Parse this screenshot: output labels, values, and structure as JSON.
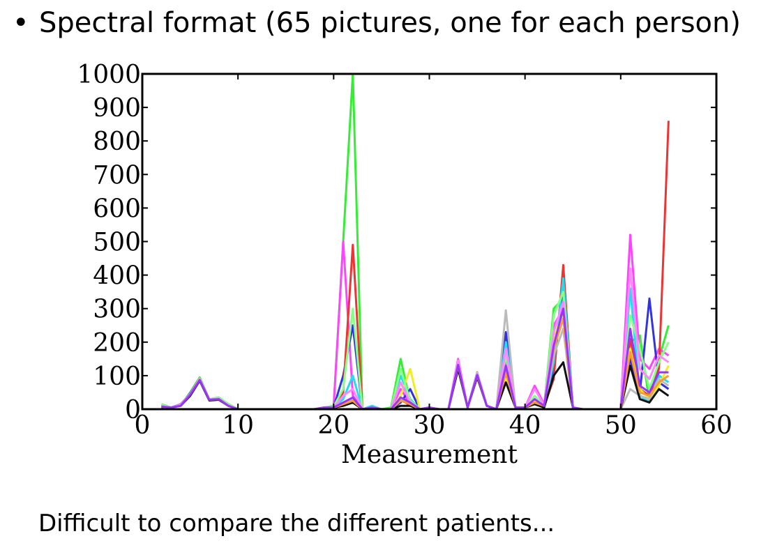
{
  "slide": {
    "bullet_symbol": "•",
    "bullet_text": "Spectral format (65 pictures, one for each person)",
    "caption": "Difficult to compare the different patients..."
  },
  "chart_data": {
    "type": "line",
    "title": "",
    "xlabel": "Measurement",
    "ylabel": "",
    "xlim": [
      0,
      60
    ],
    "ylim": [
      0,
      1000
    ],
    "xticks": [
      0,
      10,
      20,
      30,
      40,
      50,
      60
    ],
    "yticks": [
      0,
      100,
      200,
      300,
      400,
      500,
      600,
      700,
      800,
      900,
      1000
    ],
    "grid": false,
    "legend": "none",
    "x": [
      2,
      3,
      4,
      5,
      6,
      7,
      8,
      9,
      10,
      11,
      12,
      13,
      14,
      15,
      16,
      17,
      18,
      19,
      20,
      21,
      22,
      23,
      24,
      25,
      26,
      27,
      28,
      29,
      30,
      31,
      32,
      33,
      34,
      35,
      36,
      37,
      38,
      39,
      40,
      41,
      42,
      43,
      44,
      45,
      46,
      47,
      48,
      49,
      50,
      51,
      52,
      53,
      54,
      55
    ],
    "series": [
      {
        "color": "#33ee33",
        "values": [
          15,
          5,
          10,
          50,
          95,
          30,
          35,
          15,
          0,
          0,
          0,
          0,
          0,
          0,
          0,
          0,
          0,
          5,
          10,
          500,
          1000,
          0,
          5,
          0,
          5,
          150,
          20,
          0,
          5,
          0,
          0,
          140,
          5,
          110,
          10,
          0,
          100,
          5,
          5,
          30,
          10,
          300,
          330,
          5,
          0,
          0,
          0,
          0,
          0,
          200,
          220,
          20,
          150,
          250
        ]
      },
      {
        "color": "#ff44ff",
        "values": [
          10,
          5,
          15,
          45,
          90,
          28,
          32,
          10,
          0,
          0,
          0,
          0,
          0,
          0,
          0,
          0,
          0,
          5,
          5,
          500,
          40,
          0,
          5,
          0,
          0,
          60,
          15,
          0,
          5,
          0,
          0,
          150,
          5,
          110,
          10,
          0,
          140,
          5,
          5,
          70,
          15,
          250,
          300,
          5,
          0,
          0,
          0,
          0,
          0,
          520,
          150,
          120,
          180,
          160
        ]
      },
      {
        "color": "#3333dd",
        "values": [
          8,
          5,
          12,
          48,
          92,
          30,
          30,
          12,
          0,
          0,
          0,
          0,
          0,
          0,
          0,
          0,
          0,
          5,
          5,
          100,
          250,
          0,
          5,
          0,
          0,
          20,
          60,
          0,
          5,
          0,
          0,
          130,
          5,
          100,
          10,
          0,
          230,
          5,
          5,
          20,
          5,
          120,
          380,
          5,
          0,
          0,
          0,
          0,
          0,
          150,
          50,
          330,
          80,
          60
        ]
      },
      {
        "color": "#ee3333",
        "values": [
          5,
          5,
          10,
          45,
          88,
          28,
          30,
          10,
          0,
          0,
          0,
          0,
          0,
          0,
          0,
          0,
          0,
          5,
          5,
          50,
          490,
          0,
          5,
          0,
          0,
          30,
          10,
          0,
          5,
          0,
          0,
          130,
          5,
          100,
          10,
          0,
          120,
          5,
          5,
          20,
          10,
          90,
          430,
          5,
          0,
          0,
          0,
          0,
          0,
          210,
          60,
          40,
          120,
          860
        ]
      },
      {
        "color": "#22ddee",
        "values": [
          12,
          5,
          12,
          46,
          90,
          30,
          33,
          12,
          0,
          0,
          0,
          0,
          0,
          0,
          0,
          0,
          0,
          5,
          5,
          30,
          100,
          0,
          10,
          0,
          0,
          100,
          30,
          0,
          5,
          0,
          0,
          135,
          5,
          105,
          10,
          0,
          200,
          5,
          5,
          30,
          10,
          140,
          390,
          5,
          0,
          0,
          0,
          0,
          0,
          360,
          40,
          20,
          100,
          80
        ]
      },
      {
        "color": "#eeee22",
        "values": [
          6,
          5,
          10,
          44,
          88,
          28,
          30,
          10,
          0,
          0,
          0,
          0,
          0,
          0,
          0,
          0,
          0,
          5,
          5,
          20,
          20,
          0,
          5,
          0,
          0,
          40,
          120,
          0,
          5,
          0,
          0,
          140,
          5,
          100,
          10,
          0,
          90,
          5,
          5,
          25,
          10,
          210,
          290,
          5,
          0,
          0,
          0,
          0,
          0,
          180,
          60,
          30,
          70,
          130
        ]
      },
      {
        "color": "#bbbbbb",
        "values": [
          8,
          5,
          10,
          42,
          85,
          28,
          30,
          10,
          0,
          0,
          0,
          0,
          0,
          0,
          0,
          0,
          0,
          5,
          5,
          10,
          30,
          0,
          5,
          0,
          0,
          30,
          20,
          0,
          5,
          0,
          0,
          130,
          5,
          100,
          10,
          0,
          295,
          5,
          5,
          20,
          10,
          160,
          240,
          5,
          0,
          0,
          0,
          0,
          0,
          60,
          40,
          30,
          90,
          70
        ]
      },
      {
        "color": "#111111",
        "values": [
          4,
          5,
          10,
          40,
          85,
          26,
          28,
          10,
          0,
          0,
          0,
          0,
          0,
          0,
          0,
          0,
          0,
          5,
          5,
          10,
          20,
          0,
          5,
          0,
          0,
          10,
          10,
          0,
          5,
          0,
          0,
          120,
          5,
          95,
          10,
          0,
          80,
          5,
          5,
          15,
          5,
          100,
          140,
          5,
          0,
          0,
          0,
          0,
          0,
          130,
          30,
          20,
          60,
          40
        ]
      },
      {
        "color": "#88ff88",
        "values": [
          14,
          5,
          12,
          46,
          92,
          30,
          34,
          14,
          0,
          0,
          0,
          0,
          0,
          0,
          0,
          0,
          0,
          5,
          8,
          60,
          300,
          0,
          5,
          0,
          0,
          120,
          25,
          0,
          5,
          0,
          0,
          140,
          5,
          108,
          10,
          0,
          160,
          5,
          5,
          40,
          10,
          280,
          350,
          5,
          0,
          0,
          0,
          0,
          0,
          280,
          180,
          60,
          140,
          200
        ]
      },
      {
        "color": "#ff88ff",
        "values": [
          9,
          5,
          11,
          45,
          90,
          29,
          31,
          11,
          0,
          0,
          0,
          0,
          0,
          0,
          0,
          0,
          0,
          5,
          5,
          40,
          60,
          0,
          5,
          0,
          0,
          80,
          20,
          0,
          5,
          0,
          0,
          145,
          5,
          105,
          10,
          0,
          180,
          5,
          5,
          60,
          12,
          230,
          320,
          5,
          0,
          0,
          0,
          0,
          0,
          420,
          120,
          90,
          160,
          140
        ]
      },
      {
        "color": "#ff9933",
        "values": [
          7,
          5,
          10,
          44,
          88,
          28,
          30,
          10,
          0,
          0,
          0,
          0,
          0,
          0,
          0,
          0,
          0,
          5,
          5,
          15,
          25,
          0,
          5,
          0,
          0,
          25,
          15,
          0,
          5,
          0,
          0,
          130,
          5,
          100,
          10,
          0,
          110,
          5,
          5,
          20,
          10,
          180,
          270,
          5,
          0,
          0,
          0,
          0,
          0,
          170,
          50,
          40,
          80,
          100
        ]
      },
      {
        "color": "#9933ff",
        "values": [
          8,
          5,
          10,
          43,
          87,
          28,
          30,
          10,
          0,
          0,
          0,
          0,
          0,
          0,
          0,
          0,
          0,
          5,
          5,
          20,
          35,
          0,
          5,
          0,
          0,
          35,
          20,
          0,
          5,
          0,
          0,
          132,
          5,
          102,
          10,
          0,
          130,
          5,
          5,
          30,
          10,
          190,
          300,
          5,
          0,
          0,
          0,
          0,
          0,
          240,
          70,
          50,
          110,
          110
        ]
      }
    ]
  }
}
